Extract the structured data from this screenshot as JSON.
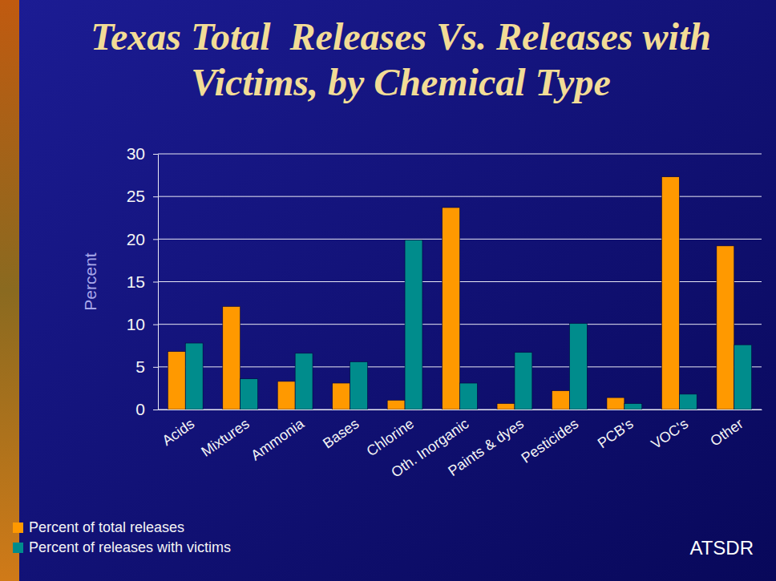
{
  "chart_data": {
    "type": "bar",
    "title": "Texas Total  Releases Vs. Releases with Victims, by Chemical Type",
    "y_label": "Percent",
    "annotations": [
      "ATSDR"
    ],
    "categories": [
      "Acids",
      "Mixtures",
      "Ammonia",
      "Bases",
      "Chlorine",
      "Oth. Inorganic",
      "Paints & dyes",
      "Pesticides",
      "PCB's",
      "VOC's",
      "Other"
    ],
    "series": [
      {
        "name": "Percent of total releases",
        "color": "#ff9900",
        "values": [
          6.8,
          12.1,
          3.3,
          3.1,
          1.1,
          23.7,
          0.7,
          2.2,
          1.4,
          27.3,
          19.2
        ]
      },
      {
        "name": "Percent of releases with victims",
        "color": "#008c8c",
        "values": [
          7.8,
          3.6,
          6.6,
          5.6,
          19.9,
          3.1,
          6.7,
          10.1,
          0.7,
          1.8,
          7.6
        ]
      }
    ],
    "ylim": [
      0,
      30
    ],
    "yticks": [
      0,
      5,
      10,
      15,
      20,
      25,
      30
    ],
    "grid": true,
    "legend": "bottom-left"
  }
}
